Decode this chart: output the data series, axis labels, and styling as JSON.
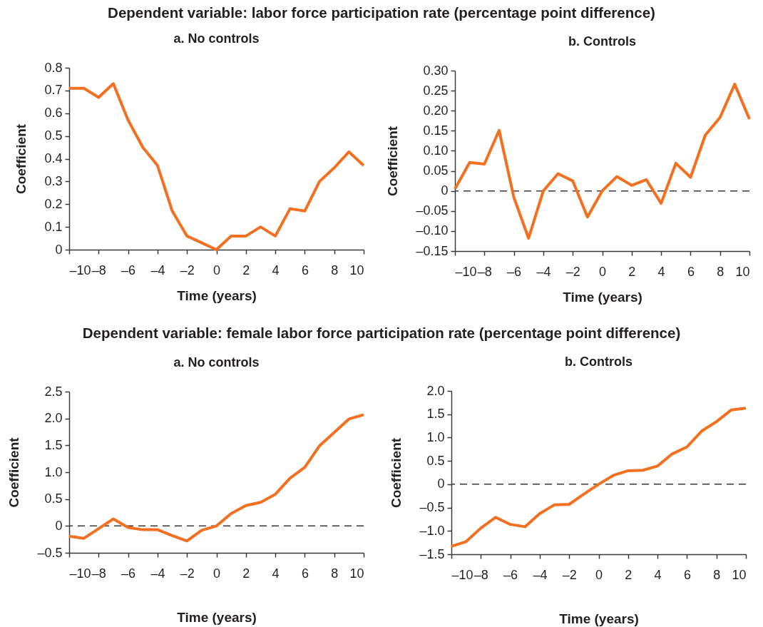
{
  "chart_data": [
    {
      "type": "line",
      "title": "a. No controls",
      "annotations": [
        "Dependent variable: labor force participation rate (percentage point difference)"
      ],
      "xlabel": "Time (years)",
      "ylabel": "Coefficient",
      "x": [
        -10,
        -9,
        -8,
        -7,
        -6,
        -5,
        -4,
        -3,
        -2,
        -1,
        0,
        1,
        2,
        3,
        4,
        5,
        6,
        7,
        8,
        9,
        10
      ],
      "values": [
        0.71,
        0.71,
        0.67,
        0.73,
        0.57,
        0.45,
        0.37,
        0.17,
        0.06,
        0.03,
        0,
        0.06,
        0.06,
        0.1,
        0.06,
        0.18,
        0.17,
        0.3,
        0.36,
        0.43,
        0.37
      ],
      "color": "#f37021",
      "xlim": [
        -10,
        10
      ],
      "ylim": [
        0,
        0.8
      ],
      "xticks": [
        {
          "value": -10,
          "label": "–10"
        },
        {
          "value": -8,
          "label": "–8"
        },
        {
          "value": -6,
          "label": "–6"
        },
        {
          "value": -4,
          "label": "–4"
        },
        {
          "value": -2,
          "label": "–2"
        },
        0,
        2,
        4,
        6,
        8,
        10
      ],
      "yticks": [
        0,
        0.1,
        0.2,
        0.3,
        0.4,
        0.5,
        0.6,
        0.7,
        0.8
      ]
    },
    {
      "type": "line",
      "title": "b. Controls",
      "xlabel": "Time (years)",
      "ylabel": "Coefficient",
      "x": [
        -10,
        -9,
        -8,
        -7,
        -6,
        -5,
        -4,
        -3,
        -2,
        -1,
        0,
        1,
        2,
        3,
        4,
        5,
        6,
        7,
        8,
        9,
        10
      ],
      "values": [
        0.005,
        0.071,
        0.067,
        0.151,
        -0.016,
        -0.118,
        0,
        0.043,
        0.025,
        -0.065,
        0,
        0.036,
        0.014,
        0.028,
        -0.031,
        0.069,
        0.034,
        0.139,
        0.183,
        0.266,
        0.179
      ],
      "color": "#f37021",
      "xlim": [
        -10,
        10
      ],
      "ylim": [
        -0.15,
        0.3
      ],
      "xticks": [
        {
          "value": -10,
          "label": "–10"
        },
        {
          "value": -8,
          "label": "–8"
        },
        {
          "value": -6,
          "label": "–6"
        },
        {
          "value": -4,
          "label": "–4"
        },
        {
          "value": -2,
          "label": "–2"
        },
        0,
        2,
        4,
        6,
        8,
        10
      ],
      "yticks": [
        {
          "value": -0.15,
          "label": "–0.15"
        },
        {
          "value": -0.1,
          "label": "–0.10"
        },
        {
          "value": -0.05,
          "label": "–0.05"
        },
        0,
        {
          "value": 0.05,
          "label": "0.05"
        },
        {
          "value": 0.1,
          "label": "0.10"
        },
        {
          "value": 0.15,
          "label": "0.15"
        },
        {
          "value": 0.2,
          "label": "0.20"
        },
        {
          "value": 0.25,
          "label": "0.25"
        },
        {
          "value": 0.3,
          "label": "0.30"
        }
      ],
      "ref_lines": [
        {
          "axis": "y",
          "value": 0,
          "color": "#3a3a3a",
          "line_style": "dashed"
        }
      ]
    },
    {
      "type": "line",
      "title": "a. No controls",
      "annotations": [
        "Dependent variable: female labor force participation rate (percentage point difference)"
      ],
      "xlabel": "Time (years)",
      "ylabel": "Coefficient",
      "x": [
        -10,
        -9,
        -8,
        -7,
        -6,
        -5,
        -4,
        -3,
        -2,
        -1,
        0,
        1,
        2,
        3,
        4,
        5,
        6,
        7,
        8,
        9,
        10
      ],
      "values": [
        -0.19,
        -0.23,
        -0.05,
        0.13,
        -0.03,
        -0.07,
        -0.07,
        -0.18,
        -0.28,
        -0.08,
        0,
        0.23,
        0.38,
        0.44,
        0.59,
        0.89,
        1.09,
        1.49,
        1.74,
        1.99,
        2.07
      ],
      "color": "#f37021",
      "xlim": [
        -10,
        10
      ],
      "ylim": [
        -0.5,
        2.5
      ],
      "xticks": [
        {
          "value": -10,
          "label": "–10"
        },
        {
          "value": -8,
          "label": "–8"
        },
        {
          "value": -6,
          "label": "–6"
        },
        {
          "value": -4,
          "label": "–4"
        },
        {
          "value": -2,
          "label": "–2"
        },
        0,
        2,
        4,
        6,
        8,
        10
      ],
      "yticks": [
        {
          "value": -0.5,
          "label": "–0.5"
        },
        0,
        0.5,
        {
          "value": 1,
          "label": "1.0"
        },
        1.5,
        {
          "value": 2,
          "label": "2.0"
        },
        2.5
      ],
      "ref_lines": [
        {
          "axis": "y",
          "value": 0,
          "color": "#3a3a3a",
          "line_style": "dashed"
        }
      ]
    },
    {
      "type": "line",
      "title": "b. Controls",
      "xlabel": "Time (years)",
      "ylabel": "Coefficient",
      "x": [
        -10,
        -9,
        -8,
        -7,
        -6,
        -5,
        -4,
        -3,
        -2,
        -1,
        0,
        1,
        2,
        3,
        4,
        5,
        6,
        7,
        8,
        9,
        10
      ],
      "values": [
        -1.33,
        -1.23,
        -0.94,
        -0.71,
        -0.86,
        -0.91,
        -0.63,
        -0.44,
        -0.43,
        -0.21,
        0,
        0.19,
        0.29,
        0.3,
        0.39,
        0.65,
        0.8,
        1.14,
        1.34,
        1.59,
        1.63
      ],
      "color": "#f37021",
      "xlim": [
        -10,
        10
      ],
      "ylim": [
        -1.5,
        2
      ],
      "xticks": [
        {
          "value": -10,
          "label": "–10"
        },
        {
          "value": -8,
          "label": "–8"
        },
        {
          "value": -6,
          "label": "–6"
        },
        {
          "value": -4,
          "label": "–4"
        },
        {
          "value": -2,
          "label": "–2"
        },
        0,
        2,
        4,
        6,
        8,
        10
      ],
      "yticks": [
        {
          "value": -1.5,
          "label": "–1.5"
        },
        {
          "value": -1,
          "label": "–1.0"
        },
        {
          "value": -0.5,
          "label": "–0.5"
        },
        0,
        0.5,
        {
          "value": 1,
          "label": "1.0"
        },
        1.5,
        {
          "value": 2,
          "label": "2.0"
        }
      ],
      "ref_lines": [
        {
          "axis": "y",
          "value": 0,
          "color": "#3a3a3a",
          "line_style": "dashed"
        }
      ]
    }
  ]
}
